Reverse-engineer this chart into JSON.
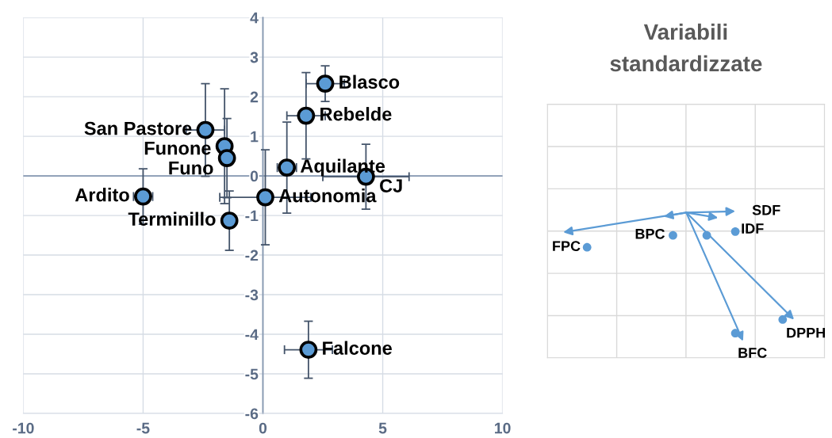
{
  "chart_data": [
    {
      "type": "scatter",
      "x": [
        2.6,
        1.8,
        -2.4,
        -1.6,
        -1.5,
        1.0,
        4.3,
        -5.0,
        0.1,
        -1.4,
        1.9
      ],
      "values": [
        2.33,
        1.52,
        1.16,
        0.75,
        0.45,
        0.21,
        -0.02,
        -0.52,
        -0.54,
        -1.13,
        -4.39
      ],
      "errors": [
        0.45,
        1.09,
        1.17,
        1.45,
        1.0,
        1.15,
        0.82,
        0.7,
        1.2,
        0.75,
        0.72
      ],
      "xerrors": [
        0.8,
        0.8,
        0.8,
        null,
        null,
        0.4,
        1.8,
        0.4,
        1.9,
        null,
        1.0
      ],
      "color": "#5b9bd5",
      "marker": "circle",
      "xlim": [
        -10,
        10
      ],
      "ylim": [
        -6,
        4
      ],
      "xticks": [
        -10,
        -5,
        0,
        5,
        10
      ],
      "yticks": [
        -6,
        -5,
        -4,
        -3,
        -2,
        -1,
        0,
        1,
        2,
        3,
        4
      ],
      "grid": true,
      "ref_lines": [
        {
          "axis": "y",
          "value": 0,
          "color": "#8497b0"
        }
      ],
      "annotations": [
        {
          "text": "Blasco",
          "x": 2.6,
          "y": 2.33
        },
        {
          "text": "Rebelde",
          "x": 1.8,
          "y": 1.52
        },
        {
          "text": "San Pastore",
          "x": -2.4,
          "y": 1.16
        },
        {
          "text": "Funone",
          "x": -1.6,
          "y": 0.75
        },
        {
          "text": "Funo",
          "x": -1.5,
          "y": 0.45
        },
        {
          "text": "Aquilante",
          "x": 1.0,
          "y": 0.21
        },
        {
          "text": "CJ",
          "x": 4.3,
          "y": -0.02
        },
        {
          "text": "Ardito",
          "x": -5.0,
          "y": -0.52
        },
        {
          "text": "Autonomia",
          "x": 0.1,
          "y": -0.54
        },
        {
          "text": "Terminillo",
          "x": -1.4,
          "y": -1.13
        },
        {
          "text": "Falcone",
          "x": 1.9,
          "y": -4.39
        }
      ]
    },
    {
      "type": "other",
      "title": "Variabili\nstandardizzate",
      "annotations": [
        "FPC",
        "BPC",
        "SDF",
        "IDF",
        "BFC",
        "DPPH"
      ]
    }
  ]
}
